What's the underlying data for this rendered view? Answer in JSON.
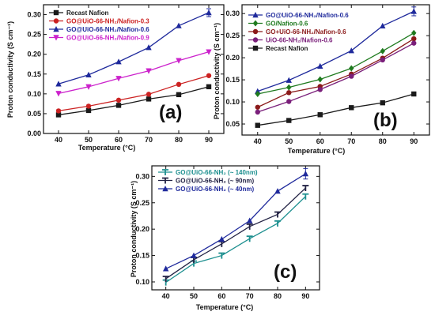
{
  "chart_data": [
    {
      "type": "line",
      "panel_label": "(a)",
      "xlabel": "Temperature (°C)",
      "ylabel": "Proton conductivity (S cm⁻¹)",
      "x": [
        40,
        50,
        60,
        70,
        80,
        90
      ],
      "xlim": [
        35,
        95
      ],
      "ylim": [
        0.0,
        0.325
      ],
      "xticks": [
        "40",
        "50",
        "60",
        "70",
        "80",
        "90"
      ],
      "yticks": [
        "0.00",
        "0.05",
        "0.10",
        "0.15",
        "0.20",
        "0.25",
        "0.30"
      ],
      "legend_position": "top-left",
      "series": [
        {
          "name": "Recast Nafion",
          "color": "#1a1a1a",
          "marker": "square",
          "values": [
            0.047,
            0.058,
            0.071,
            0.087,
            0.098,
            0.118
          ]
        },
        {
          "name": "GO@UiO-66-NH₂/Nafion-0.3",
          "color": "#cc2222",
          "marker": "circle",
          "values": [
            0.057,
            0.069,
            0.084,
            0.099,
            0.124,
            0.146
          ]
        },
        {
          "name": "GO@UiO-66-NH₂/Nafion-0.6",
          "color": "#1f2a9c",
          "marker": "triangle-up",
          "values": [
            0.125,
            0.148,
            0.181,
            0.217,
            0.272,
            0.305
          ],
          "errors": [
            0,
            0,
            0,
            0,
            0,
            0.01
          ]
        },
        {
          "name": "GO@UiO-66-NH₂/Nafion-0.9",
          "color": "#cc22cc",
          "marker": "triangle-down",
          "values": [
            0.101,
            0.118,
            0.139,
            0.158,
            0.184,
            0.206
          ]
        }
      ]
    },
    {
      "type": "line",
      "panel_label": "(b)",
      "xlabel": "Temperature (°C)",
      "ylabel": "Proton conductivity (S cm⁻¹)",
      "x": [
        40,
        50,
        60,
        70,
        80,
        90
      ],
      "xlim": [
        35,
        95
      ],
      "ylim": [
        0.025,
        0.32
      ],
      "xticks": [
        "40",
        "50",
        "60",
        "70",
        "80",
        "90"
      ],
      "yticks": [
        "0.05",
        "0.10",
        "0.15",
        "0.20",
        "0.25",
        "0.30"
      ],
      "legend_position": "top-left",
      "series": [
        {
          "name": "GO@UiO-66-NH₂/Nafion-0.6",
          "color": "#1f2a9c",
          "marker": "triangle-up",
          "values": [
            0.124,
            0.149,
            0.181,
            0.216,
            0.272,
            0.305
          ],
          "errors": [
            0,
            0,
            0,
            0,
            0,
            0.01
          ]
        },
        {
          "name": "GO/Nafion-0.6",
          "color": "#1e7a1e",
          "marker": "diamond",
          "values": [
            0.118,
            0.133,
            0.151,
            0.176,
            0.215,
            0.256
          ]
        },
        {
          "name": "GO+UiO-66-NH₂/Nafion-0.6",
          "color": "#8b1a1a",
          "marker": "circle",
          "values": [
            0.088,
            0.121,
            0.135,
            0.163,
            0.199,
            0.243
          ]
        },
        {
          "name": "UiO-66-NH₂/Nafion-0.6",
          "color": "#7a1f7a",
          "marker": "circle",
          "values": [
            0.077,
            0.101,
            0.128,
            0.158,
            0.195,
            0.233
          ]
        },
        {
          "name": "Recast Nafion",
          "color": "#1a1a1a",
          "marker": "square",
          "values": [
            0.047,
            0.058,
            0.071,
            0.087,
            0.098,
            0.118
          ]
        }
      ]
    },
    {
      "type": "line",
      "panel_label": "(c)",
      "xlabel": "Temperature (°C)",
      "ylabel": "Proton conductivity (S cm⁻¹)",
      "x": [
        40,
        50,
        60,
        70,
        80,
        90
      ],
      "xlim": [
        35,
        95
      ],
      "ylim": [
        0.085,
        0.32
      ],
      "xticks": [
        "40",
        "50",
        "60",
        "70",
        "80",
        "90"
      ],
      "yticks": [
        "0.10",
        "0.15",
        "0.20",
        "0.25",
        "0.30"
      ],
      "legend_position": "top-left",
      "series": [
        {
          "name": "GO@UiO-66-NH₂ (~ 140nm)",
          "color": "#1c8f8f",
          "marker": "tri-cross",
          "values": [
            0.099,
            0.135,
            0.15,
            0.182,
            0.211,
            0.262
          ]
        },
        {
          "name": "GO@UiO-66-NH₂ (~ 90nm)",
          "color": "#222244",
          "marker": "tri-cross",
          "values": [
            0.106,
            0.142,
            0.172,
            0.205,
            0.228,
            0.278
          ]
        },
        {
          "name": "GO@UiO-66-NH₂ (~ 40nm)",
          "color": "#1f2a9c",
          "marker": "triangle-up",
          "values": [
            0.125,
            0.15,
            0.181,
            0.216,
            0.272,
            0.305
          ],
          "errors": [
            0,
            0,
            0,
            0,
            0,
            0.01
          ]
        }
      ]
    }
  ]
}
